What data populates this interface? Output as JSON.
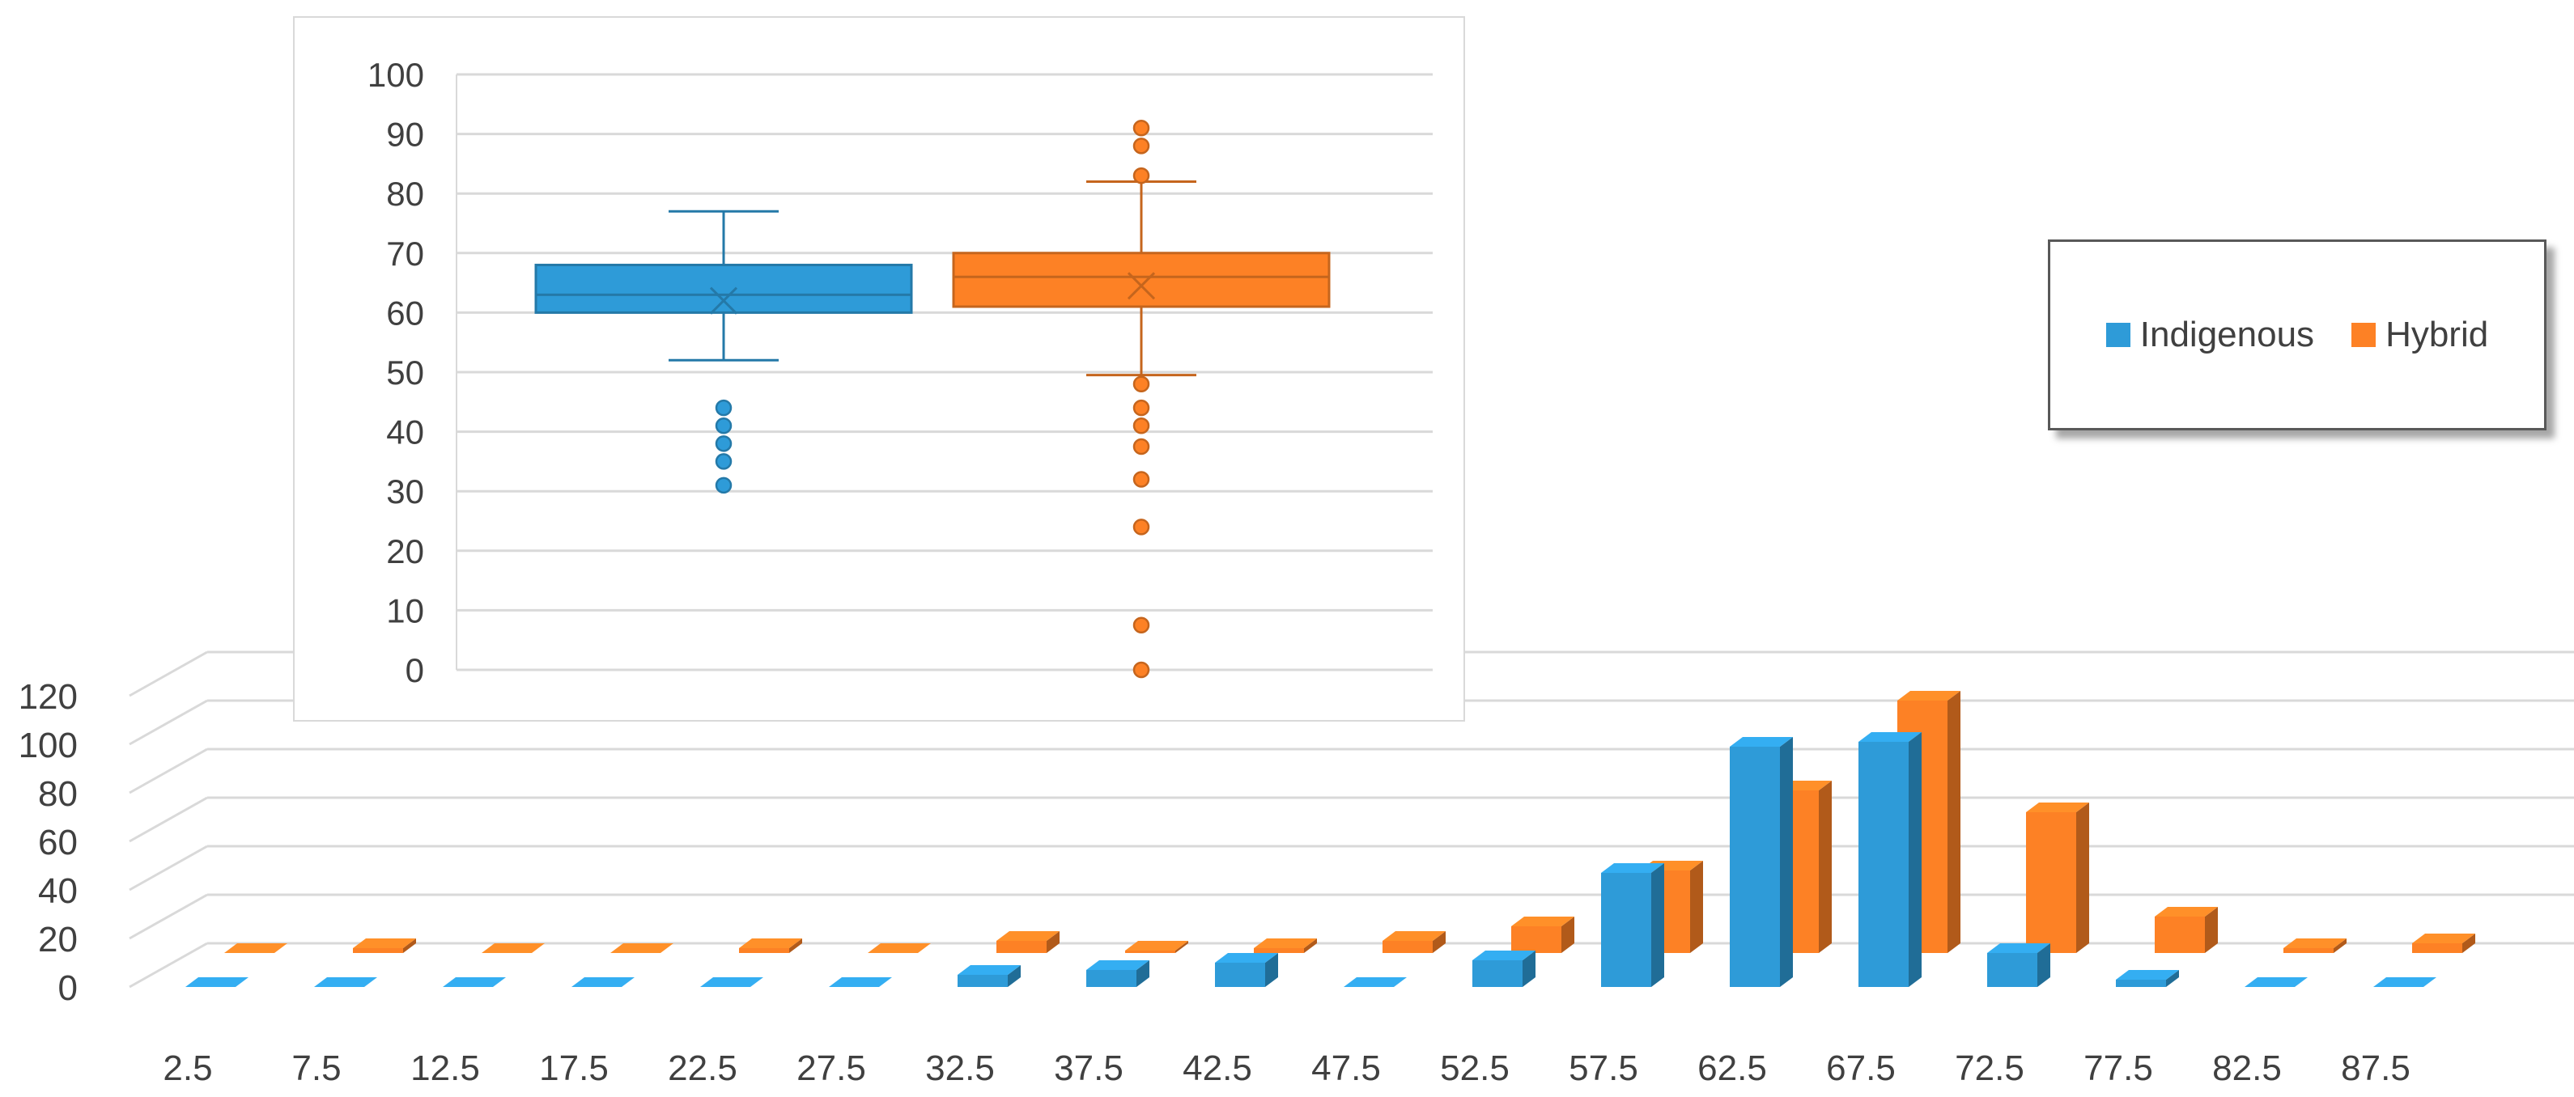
{
  "chart_data": [
    {
      "type": "bar",
      "style": "3d-clustered-column",
      "categories": [
        "2.5",
        "7.5",
        "12.5",
        "17.5",
        "22.5",
        "27.5",
        "32.5",
        "37.5",
        "42.5",
        "47.5",
        "52.5",
        "57.5",
        "62.5",
        "67.5",
        "72.5",
        "77.5",
        "82.5",
        "87.5"
      ],
      "series": [
        {
          "name": "Indigenous",
          "color": "#2e9bd8",
          "values": [
            0,
            0,
            0,
            0,
            0,
            0,
            5,
            7,
            10,
            0,
            11,
            47,
            99,
            101,
            14,
            3,
            0,
            0
          ]
        },
        {
          "name": "Hybrid",
          "color": "#fd8125",
          "values": [
            0,
            2,
            0,
            0,
            2,
            0,
            5,
            1,
            2,
            5,
            11,
            34,
            67,
            104,
            58,
            15,
            2,
            4
          ]
        }
      ],
      "ylim": [
        0,
        120
      ],
      "yticks": [
        0,
        20,
        40,
        60,
        80,
        100,
        120
      ],
      "grid": true,
      "legend": {
        "position": "right",
        "entries": [
          "Indigenous",
          "Hybrid"
        ]
      }
    },
    {
      "type": "boxplot",
      "ylim": [
        0,
        100
      ],
      "yticks": [
        0,
        10,
        20,
        30,
        40,
        50,
        60,
        70,
        80,
        90,
        100
      ],
      "grid": true,
      "series": [
        {
          "name": "Indigenous",
          "color": "#2e9bd8",
          "whisker_low": 52,
          "q1": 60,
          "median": 63,
          "mean": 62,
          "q3": 68,
          "whisker_high": 77,
          "outliers": [
            44,
            41,
            38,
            35,
            31
          ]
        },
        {
          "name": "Hybrid",
          "color": "#fd8125",
          "whisker_low": 49.5,
          "q1": 61,
          "median": 66,
          "mean": 64.5,
          "q3": 70,
          "whisker_high": 82,
          "outliers": [
            91,
            88,
            83,
            48,
            44,
            41,
            37.5,
            32,
            24,
            7.5,
            0
          ]
        }
      ]
    }
  ]
}
